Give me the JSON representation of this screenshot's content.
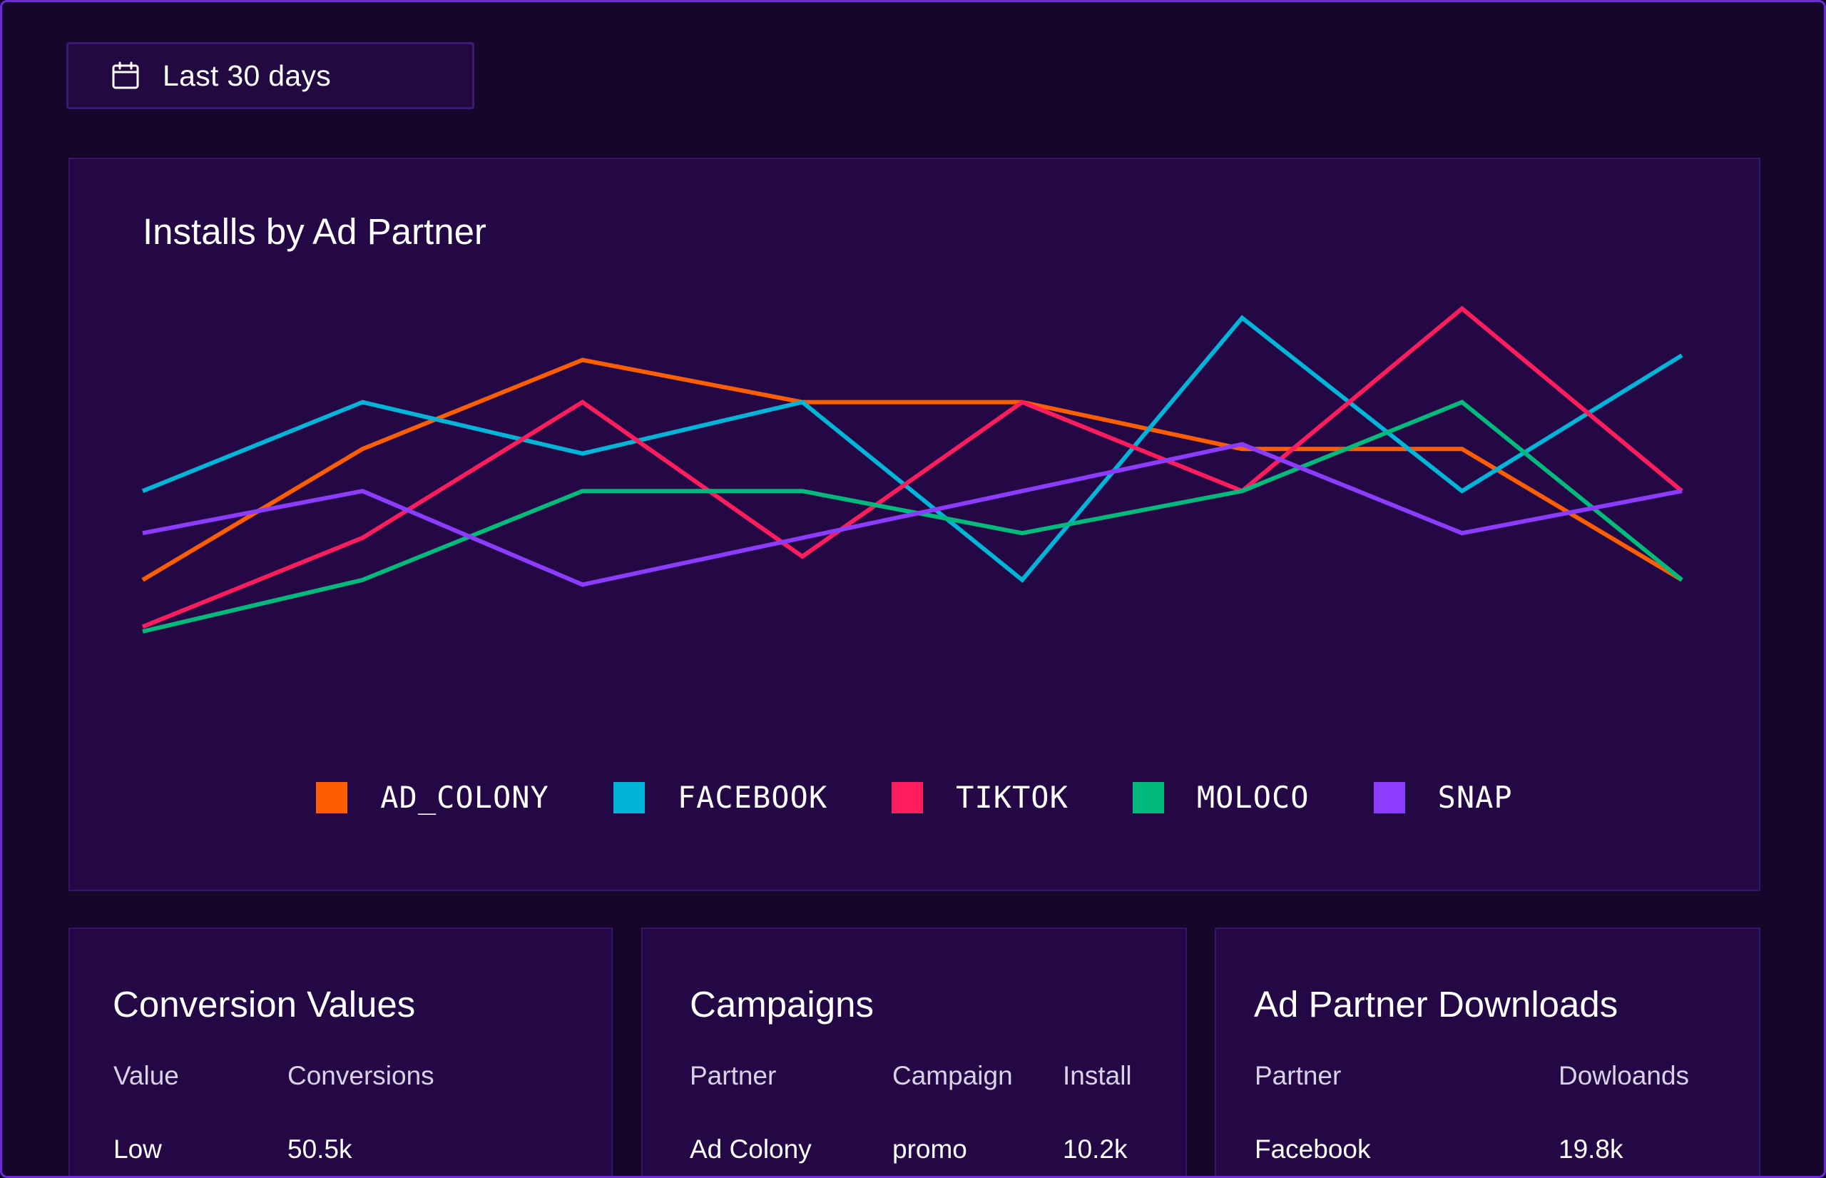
{
  "date_range": {
    "label": "Last 30 days",
    "icon": "calendar-icon"
  },
  "installs_chart": {
    "title": "Installs by Ad Partner"
  },
  "chart_data": {
    "type": "line",
    "title": "Installs by Ad Partner",
    "xlabel": "",
    "ylabel": "",
    "x": [
      1,
      2,
      3,
      4,
      5,
      6,
      7,
      8
    ],
    "ylim": [
      0,
      100
    ],
    "grid": false,
    "legend": "bottom-center",
    "series": [
      {
        "name": "AD_COLONY",
        "color": "#ff5e00",
        "values": [
          36,
          64,
          83,
          74,
          74,
          64,
          64,
          36
        ]
      },
      {
        "name": "FACEBOOK",
        "color": "#00b4d8",
        "values": [
          55,
          74,
          63,
          74,
          36,
          92,
          55,
          84
        ]
      },
      {
        "name": "TIKTOK",
        "color": "#ff1d5e",
        "values": [
          26,
          45,
          74,
          41,
          74,
          55,
          94,
          55
        ]
      },
      {
        "name": "MOLOCO",
        "color": "#00b97a",
        "values": [
          25,
          36,
          55,
          55,
          46,
          55,
          74,
          36
        ]
      },
      {
        "name": "SNAP",
        "color": "#8b3cff",
        "values": [
          46,
          55,
          35,
          45,
          55,
          65,
          46,
          55
        ]
      }
    ]
  },
  "conversion_values": {
    "title": "Conversion Values",
    "columns": [
      "Value",
      "Conversions"
    ],
    "rows": [
      [
        "Low",
        "50.5k"
      ]
    ]
  },
  "campaigns": {
    "title": "Campaigns",
    "columns": [
      "Partner",
      "Campaign",
      "Install"
    ],
    "rows": [
      [
        "Ad Colony",
        "promo",
        "10.2k"
      ]
    ]
  },
  "ad_partner_downloads": {
    "title": "Ad Partner Downloads",
    "columns": [
      "Partner",
      "Dowloands"
    ],
    "rows": [
      [
        "Facebook",
        "19.8k"
      ]
    ]
  }
}
